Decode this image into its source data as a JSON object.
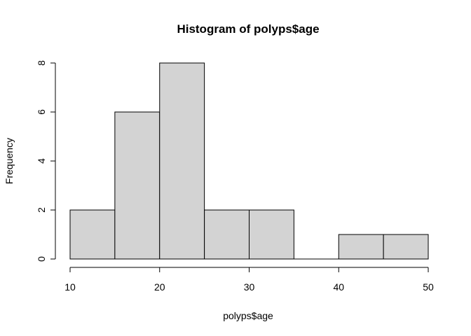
{
  "chart_data": {
    "type": "bar",
    "title": "Histogram of polyps$age",
    "xlabel": "polyps$age",
    "ylabel": "Frequency",
    "bins": [
      {
        "start": 10,
        "end": 15,
        "count": 2
      },
      {
        "start": 15,
        "end": 20,
        "count": 6
      },
      {
        "start": 20,
        "end": 25,
        "count": 8
      },
      {
        "start": 25,
        "end": 30,
        "count": 2
      },
      {
        "start": 30,
        "end": 35,
        "count": 2
      },
      {
        "start": 35,
        "end": 40,
        "count": 0
      },
      {
        "start": 40,
        "end": 45,
        "count": 1
      },
      {
        "start": 45,
        "end": 50,
        "count": 1
      }
    ],
    "xlim": [
      10,
      50
    ],
    "ylim": [
      0,
      8
    ],
    "x_ticks": [
      10,
      20,
      30,
      40,
      50
    ],
    "y_ticks": [
      0,
      2,
      4,
      6,
      8
    ],
    "bar_color": "#d3d3d3",
    "grid": false
  }
}
